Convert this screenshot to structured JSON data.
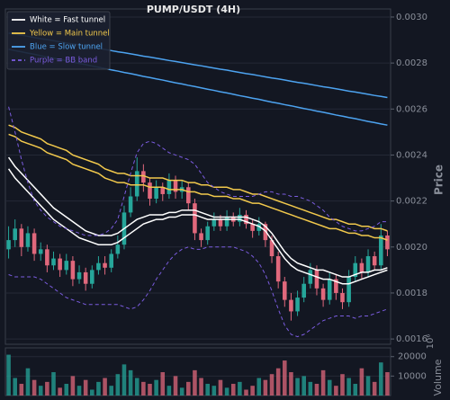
{
  "chart_data": {
    "type": "candlestick",
    "title": "PUMP/USDT (4H)",
    "y_label": "Price",
    "ylim": [
      0.001577,
      0.003035
    ],
    "yticks": [
      {
        "value": 0.003,
        "label": "0.0030"
      },
      {
        "value": 0.0028,
        "label": "0.0028"
      },
      {
        "value": 0.0026,
        "label": "0.0026"
      },
      {
        "value": 0.0024,
        "label": "0.0024"
      },
      {
        "value": 0.0022,
        "label": "0.0022"
      },
      {
        "value": 0.002,
        "label": "0.0020"
      },
      {
        "value": 0.0018,
        "label": "0.0018"
      },
      {
        "value": 0.0016,
        "label": "0.0016"
      }
    ],
    "grid": true,
    "legend_position": "upper left",
    "up_color": "#26a69a",
    "down_color": "#e0687c",
    "open": [
      0.00199,
      0.00203,
      0.00208,
      0.002,
      0.00206,
      0.00197,
      0.00199,
      0.00192,
      0.00195,
      0.0019,
      0.00194,
      0.00186,
      0.00189,
      0.00184,
      0.0019,
      0.00193,
      0.00191,
      0.00197,
      0.00201,
      0.00215,
      0.00222,
      0.00233,
      0.00228,
      0.00221,
      0.00226,
      0.00223,
      0.00229,
      0.00224,
      0.00226,
      0.00219,
      0.00206,
      0.00203,
      0.00209,
      0.00212,
      0.00209,
      0.00213,
      0.00211,
      0.00214,
      0.0021,
      0.00207,
      0.0021,
      0.00203,
      0.00196,
      0.00185,
      0.00177,
      0.00172,
      0.00178,
      0.00184,
      0.0019,
      0.00182,
      0.00177,
      0.00186,
      0.0018,
      0.00176,
      0.00187,
      0.00193,
      0.00189,
      0.00196,
      0.00192,
      0.00205
    ],
    "close": [
      0.00203,
      0.00208,
      0.002,
      0.00206,
      0.00197,
      0.00199,
      0.00192,
      0.00195,
      0.0019,
      0.00194,
      0.00186,
      0.00189,
      0.00184,
      0.0019,
      0.00193,
      0.00191,
      0.00197,
      0.00201,
      0.00215,
      0.00222,
      0.00233,
      0.00228,
      0.00221,
      0.00226,
      0.00223,
      0.00229,
      0.00224,
      0.00226,
      0.00219,
      0.00206,
      0.00203,
      0.00209,
      0.00212,
      0.00209,
      0.00213,
      0.00211,
      0.00214,
      0.0021,
      0.00207,
      0.0021,
      0.00203,
      0.00196,
      0.00185,
      0.00177,
      0.00172,
      0.00178,
      0.00184,
      0.0019,
      0.00182,
      0.00177,
      0.00186,
      0.0018,
      0.00176,
      0.00187,
      0.00193,
      0.00189,
      0.00196,
      0.00192,
      0.00205,
      0.00199
    ],
    "high": [
      0.00209,
      0.00212,
      0.0021,
      0.00209,
      0.00208,
      0.00202,
      0.00201,
      0.00198,
      0.00197,
      0.00197,
      0.00196,
      0.00192,
      0.00191,
      0.00192,
      0.00196,
      0.00196,
      0.00199,
      0.00205,
      0.00218,
      0.00226,
      0.00239,
      0.00236,
      0.0023,
      0.00229,
      0.00228,
      0.00232,
      0.00231,
      0.00229,
      0.00228,
      0.00221,
      0.00208,
      0.00211,
      0.00215,
      0.00214,
      0.00216,
      0.00215,
      0.00217,
      0.00216,
      0.00212,
      0.00213,
      0.00211,
      0.00205,
      0.00198,
      0.00187,
      0.0018,
      0.00181,
      0.00187,
      0.00193,
      0.00192,
      0.00184,
      0.00189,
      0.00188,
      0.00182,
      0.0019,
      0.00196,
      0.00195,
      0.00199,
      0.00198,
      0.0021,
      0.00207
    ],
    "low": [
      0.00195,
      0.002,
      0.00196,
      0.00198,
      0.00194,
      0.00194,
      0.00189,
      0.0019,
      0.00187,
      0.00188,
      0.00183,
      0.00184,
      0.00181,
      0.00182,
      0.00188,
      0.00188,
      0.00189,
      0.00195,
      0.00199,
      0.00213,
      0.0022,
      0.00224,
      0.00218,
      0.00219,
      0.0022,
      0.00221,
      0.00221,
      0.00221,
      0.00216,
      0.00203,
      0.002,
      0.00201,
      0.00207,
      0.00207,
      0.00207,
      0.00209,
      0.00209,
      0.00208,
      0.00204,
      0.00205,
      0.002,
      0.00193,
      0.00182,
      0.00174,
      0.00168,
      0.0017,
      0.00176,
      0.00182,
      0.00179,
      0.00174,
      0.00175,
      0.00177,
      0.00173,
      0.00174,
      0.00185,
      0.00186,
      0.00187,
      0.0019,
      0.0019,
      0.00196
    ],
    "lines": [
      {
        "name": "White = Fast tunnel",
        "color": "#ffffff",
        "dashed": false,
        "upper": [
          0.00239,
          0.00235,
          0.00232,
          0.00229,
          0.00226,
          0.00223,
          0.0022,
          0.00217,
          0.00215,
          0.00213,
          0.00211,
          0.00209,
          0.00207,
          0.00206,
          0.00205,
          0.00205,
          0.00205,
          0.00206,
          0.00208,
          0.0021,
          0.00212,
          0.00213,
          0.00214,
          0.00214,
          0.00214,
          0.00215,
          0.00215,
          0.00216,
          0.00216,
          0.00216,
          0.00215,
          0.00214,
          0.00213,
          0.00213,
          0.00213,
          0.00213,
          0.00213,
          0.00213,
          0.00212,
          0.00211,
          0.00209,
          0.00206,
          0.00202,
          0.00198,
          0.00195,
          0.00193,
          0.00192,
          0.00191,
          0.0019,
          0.0019,
          0.00189,
          0.00188,
          0.00187,
          0.00187,
          0.00188,
          0.00189,
          0.00189,
          0.0019,
          0.0019,
          0.00191
        ],
        "lower": [
          0.00234,
          0.0023,
          0.00227,
          0.00224,
          0.00221,
          0.00218,
          0.00215,
          0.00212,
          0.0021,
          0.00208,
          0.00206,
          0.00204,
          0.00203,
          0.00202,
          0.00201,
          0.00201,
          0.00201,
          0.00202,
          0.00204,
          0.00206,
          0.00208,
          0.0021,
          0.00211,
          0.00212,
          0.00212,
          0.00213,
          0.00213,
          0.00214,
          0.00214,
          0.00214,
          0.00213,
          0.00212,
          0.00212,
          0.00212,
          0.00212,
          0.00212,
          0.00212,
          0.00211,
          0.0021,
          0.00209,
          0.00207,
          0.00203,
          0.00199,
          0.00195,
          0.00192,
          0.0019,
          0.00189,
          0.00188,
          0.00187,
          0.00186,
          0.00186,
          0.00185,
          0.00184,
          0.00184,
          0.00185,
          0.00186,
          0.00187,
          0.00188,
          0.00189,
          0.0019
        ]
      },
      {
        "name": "Yellow = Main tunnel",
        "color": "#f2c94c",
        "dashed": false,
        "upper": [
          0.00253,
          0.00252,
          0.0025,
          0.00249,
          0.00248,
          0.00247,
          0.00245,
          0.00244,
          0.00243,
          0.00242,
          0.0024,
          0.00239,
          0.00238,
          0.00237,
          0.00236,
          0.00234,
          0.00233,
          0.00232,
          0.00232,
          0.00231,
          0.00231,
          0.00231,
          0.0023,
          0.0023,
          0.0023,
          0.00229,
          0.00229,
          0.00229,
          0.00228,
          0.00228,
          0.00227,
          0.00227,
          0.00226,
          0.00226,
          0.00226,
          0.00225,
          0.00225,
          0.00224,
          0.00223,
          0.00223,
          0.00222,
          0.00221,
          0.0022,
          0.00219,
          0.00218,
          0.00217,
          0.00216,
          0.00215,
          0.00214,
          0.00213,
          0.00212,
          0.00212,
          0.00211,
          0.0021,
          0.0021,
          0.00209,
          0.00209,
          0.00208,
          0.00208,
          0.00207
        ],
        "lower": [
          0.00249,
          0.00248,
          0.00246,
          0.00245,
          0.00244,
          0.00243,
          0.00241,
          0.0024,
          0.00239,
          0.00238,
          0.00236,
          0.00235,
          0.00234,
          0.00233,
          0.00232,
          0.0023,
          0.00229,
          0.00228,
          0.00228,
          0.00227,
          0.00227,
          0.00227,
          0.00226,
          0.00226,
          0.00226,
          0.00225,
          0.00225,
          0.00225,
          0.00224,
          0.00224,
          0.00223,
          0.00223,
          0.00222,
          0.00222,
          0.00222,
          0.00221,
          0.00221,
          0.0022,
          0.00219,
          0.00219,
          0.00218,
          0.00217,
          0.00216,
          0.00215,
          0.00214,
          0.00213,
          0.00212,
          0.00211,
          0.0021,
          0.00209,
          0.00208,
          0.00208,
          0.00207,
          0.00206,
          0.00206,
          0.00205,
          0.00205,
          0.00204,
          0.00204,
          0.00203
        ]
      },
      {
        "name": "Blue = Slow tunnel",
        "color": "#4da3f0",
        "dashed": false,
        "upper": [
          0.00293,
          0.002925,
          0.002921,
          0.002916,
          0.002911,
          0.002906,
          0.002902,
          0.002897,
          0.002892,
          0.002887,
          0.002883,
          0.002878,
          0.002873,
          0.002868,
          0.002864,
          0.002859,
          0.002854,
          0.002849,
          0.002845,
          0.00284,
          0.002835,
          0.00283,
          0.002826,
          0.002821,
          0.002816,
          0.002811,
          0.002807,
          0.002802,
          0.002797,
          0.002792,
          0.002788,
          0.002783,
          0.002778,
          0.002773,
          0.002769,
          0.002764,
          0.002759,
          0.002754,
          0.00275,
          0.002745,
          0.00274,
          0.002735,
          0.002731,
          0.002726,
          0.002721,
          0.002716,
          0.002712,
          0.002707,
          0.002702,
          0.002697,
          0.002693,
          0.002688,
          0.002683,
          0.002678,
          0.002674,
          0.002669,
          0.002664,
          0.002659,
          0.002655,
          0.00265
        ],
        "lower": [
          0.00286,
          0.002854,
          0.002849,
          0.002843,
          0.002838,
          0.002832,
          0.002826,
          0.002821,
          0.002815,
          0.00281,
          0.002804,
          0.002798,
          0.002793,
          0.002787,
          0.002782,
          0.002776,
          0.00277,
          0.002765,
          0.002759,
          0.002754,
          0.002748,
          0.002742,
          0.002737,
          0.002731,
          0.002726,
          0.00272,
          0.002714,
          0.002709,
          0.002703,
          0.002698,
          0.002692,
          0.002686,
          0.002681,
          0.002675,
          0.00267,
          0.002664,
          0.002658,
          0.002653,
          0.002647,
          0.002642,
          0.002636,
          0.00263,
          0.002625,
          0.002619,
          0.002614,
          0.002608,
          0.002602,
          0.002597,
          0.002591,
          0.002586,
          0.00258,
          0.002574,
          0.002569,
          0.002563,
          0.002558,
          0.002552,
          0.002546,
          0.002541,
          0.002535,
          0.00253
        ]
      },
      {
        "name": "Purple = BB band",
        "color": "#7b5ce0",
        "dashed": true,
        "upper": [
          0.00261,
          0.0025,
          0.00238,
          0.00228,
          0.0022,
          0.00216,
          0.00213,
          0.00211,
          0.00209,
          0.00208,
          0.00207,
          0.00206,
          0.00205,
          0.00205,
          0.00205,
          0.00206,
          0.00208,
          0.00212,
          0.00222,
          0.00232,
          0.00241,
          0.00245,
          0.00246,
          0.00245,
          0.00243,
          0.00241,
          0.0024,
          0.00239,
          0.00238,
          0.00236,
          0.00232,
          0.00228,
          0.00226,
          0.00224,
          0.00223,
          0.00222,
          0.00222,
          0.00222,
          0.00222,
          0.00223,
          0.00224,
          0.00224,
          0.00223,
          0.00223,
          0.00222,
          0.00222,
          0.00221,
          0.0022,
          0.00218,
          0.00216,
          0.00213,
          0.00211,
          0.00209,
          0.00208,
          0.00207,
          0.00207,
          0.00208,
          0.00209,
          0.00211,
          0.00211
        ],
        "lower": [
          0.00188,
          0.00187,
          0.00187,
          0.00187,
          0.00187,
          0.00186,
          0.00184,
          0.00182,
          0.0018,
          0.00178,
          0.00177,
          0.00176,
          0.00175,
          0.00175,
          0.00175,
          0.00175,
          0.00175,
          0.00175,
          0.00174,
          0.00173,
          0.00174,
          0.00177,
          0.00181,
          0.00186,
          0.0019,
          0.00194,
          0.00197,
          0.00199,
          0.002,
          0.00199,
          0.00199,
          0.002,
          0.002,
          0.002,
          0.002,
          0.002,
          0.00199,
          0.00198,
          0.00196,
          0.00193,
          0.00188,
          0.00181,
          0.00173,
          0.00166,
          0.00162,
          0.00161,
          0.00162,
          0.00164,
          0.00166,
          0.00168,
          0.00169,
          0.0017,
          0.0017,
          0.0017,
          0.00169,
          0.0017,
          0.0017,
          0.00171,
          0.00172,
          0.00173
        ]
      }
    ],
    "volume": {
      "y_label": "Volume",
      "offset_label": "10⁶",
      "ylim": [
        0,
        24500
      ],
      "yticks": [
        10000,
        20000
      ],
      "values": [
        21000,
        9000,
        6000,
        14000,
        8000,
        5000,
        7000,
        12000,
        4000,
        6000,
        10000,
        5000,
        8000,
        3000,
        7000,
        9000,
        5000,
        11000,
        16000,
        13000,
        9000,
        7000,
        6000,
        8000,
        12000,
        5000,
        10000,
        4000,
        7000,
        13000,
        9000,
        6000,
        5000,
        8000,
        4000,
        6000,
        7000,
        3000,
        5000,
        9000,
        8000,
        11000,
        14000,
        18000,
        12000,
        9000,
        10000,
        7000,
        6000,
        13000,
        8000,
        5000,
        11000,
        9000,
        6000,
        14000,
        10000,
        7000,
        17000,
        12000
      ]
    }
  }
}
